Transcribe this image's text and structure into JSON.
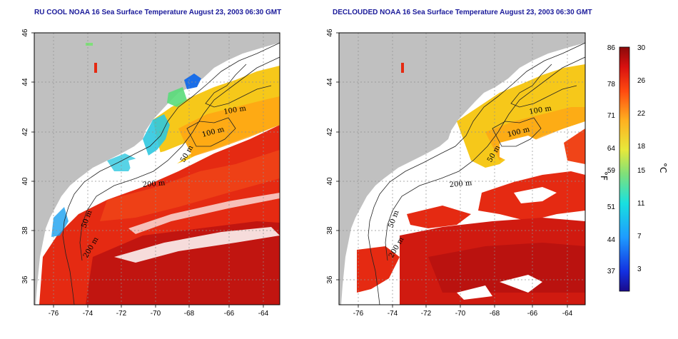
{
  "left_map": {
    "title": "RU COOL NOAA 16 Sea Surface Temperature August 23, 2003 06:30 GMT",
    "contour_labels": [
      "100 m",
      "100 m",
      "50 m",
      "200 m",
      "50 m",
      "200 m"
    ]
  },
  "right_map": {
    "title": "DECLOUDED NOAA 16 Sea Surface Temperature August 23, 2003 06:30 GMT",
    "contour_labels": [
      "100 m",
      "100 m",
      "50 m",
      "200 m",
      "50 m",
      "200 m"
    ]
  },
  "axes": {
    "lon_ticks": [
      "-76",
      "-74",
      "-72",
      "-70",
      "-68",
      "-66",
      "-64"
    ],
    "lat_ticks": [
      "46",
      "44",
      "42",
      "40",
      "38",
      "36"
    ]
  },
  "colorbar": {
    "fahrenheit_unit": "°F",
    "celsius_unit": "°C",
    "fahrenheit_labels": [
      "86",
      "78",
      "71",
      "64",
      "59",
      "51",
      "44",
      "37"
    ],
    "celsius_labels": [
      "30",
      "26",
      "22",
      "18",
      "15",
      "11",
      "7",
      "3"
    ],
    "range_celsius": [
      0,
      30
    ]
  },
  "colors": {
    "land": "#c0c0c0",
    "cloud": "#ffffff",
    "title": "#1a1a9a"
  }
}
